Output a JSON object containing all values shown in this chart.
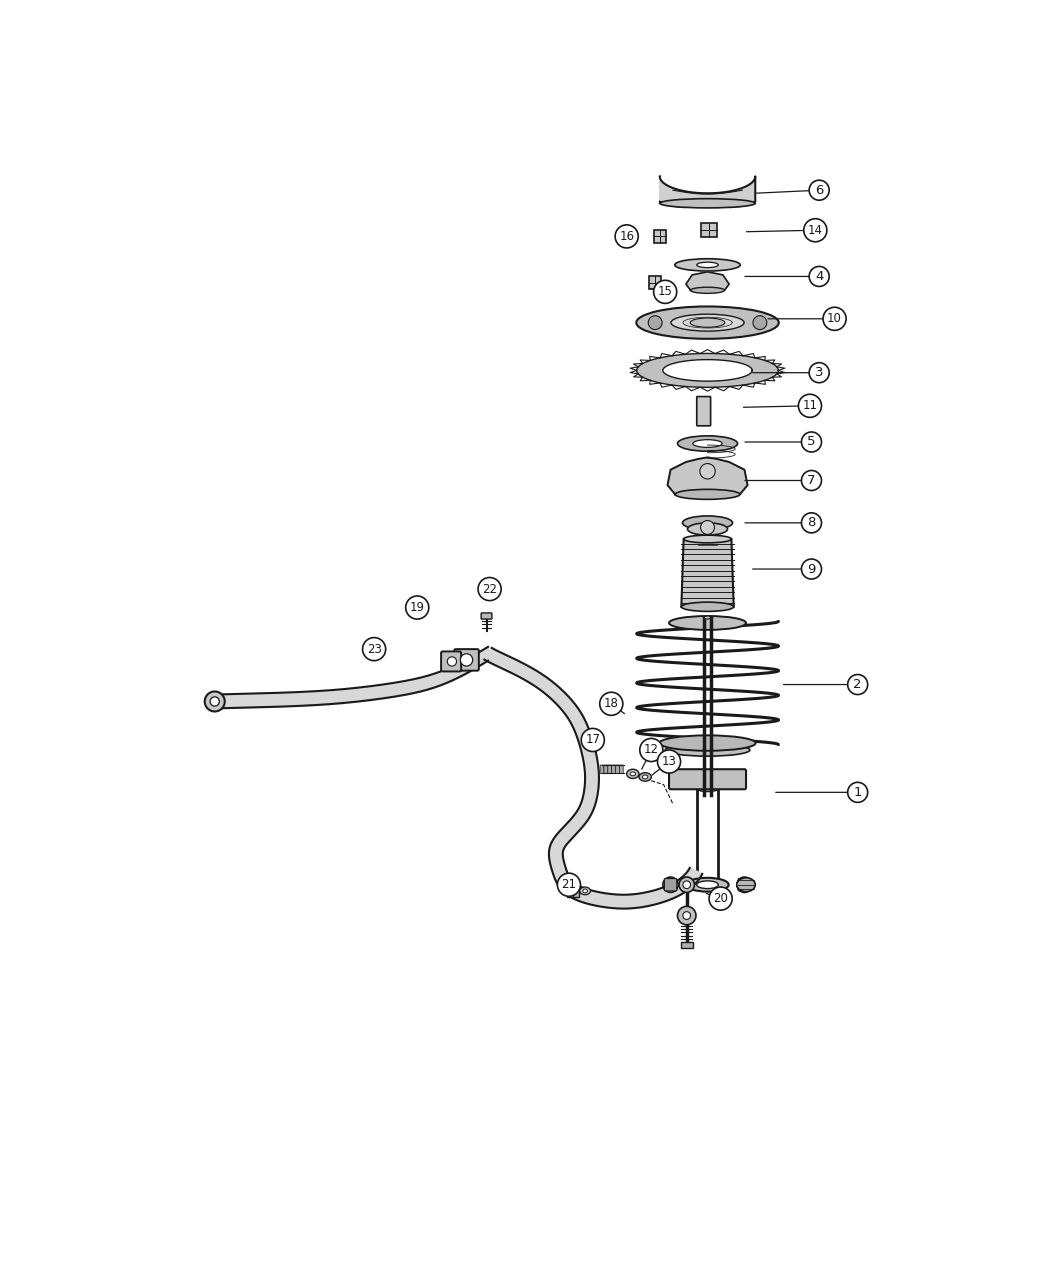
{
  "bg_color": "#ffffff",
  "line_color": "#1a1a1a",
  "callouts": [
    [
      1,
      830,
      830,
      940,
      830
    ],
    [
      2,
      840,
      690,
      940,
      690
    ],
    [
      3,
      800,
      285,
      890,
      285
    ],
    [
      4,
      790,
      160,
      890,
      160
    ],
    [
      5,
      790,
      375,
      880,
      375
    ],
    [
      6,
      805,
      52,
      890,
      48
    ],
    [
      7,
      790,
      425,
      880,
      425
    ],
    [
      8,
      790,
      480,
      880,
      480
    ],
    [
      9,
      800,
      540,
      880,
      540
    ],
    [
      10,
      820,
      215,
      910,
      215
    ],
    [
      11,
      788,
      330,
      878,
      328
    ],
    [
      12,
      658,
      803,
      672,
      775
    ],
    [
      13,
      670,
      810,
      695,
      790
    ],
    [
      14,
      792,
      102,
      885,
      100
    ],
    [
      15,
      668,
      175,
      690,
      180
    ],
    [
      16,
      648,
      108,
      640,
      108
    ],
    [
      17,
      594,
      780,
      596,
      762
    ],
    [
      18,
      640,
      730,
      620,
      715
    ],
    [
      19,
      378,
      604,
      368,
      590
    ],
    [
      20,
      740,
      960,
      762,
      968
    ],
    [
      21,
      578,
      960,
      565,
      950
    ],
    [
      22,
      460,
      580,
      462,
      566
    ],
    [
      23,
      320,
      632,
      312,
      644
    ]
  ]
}
